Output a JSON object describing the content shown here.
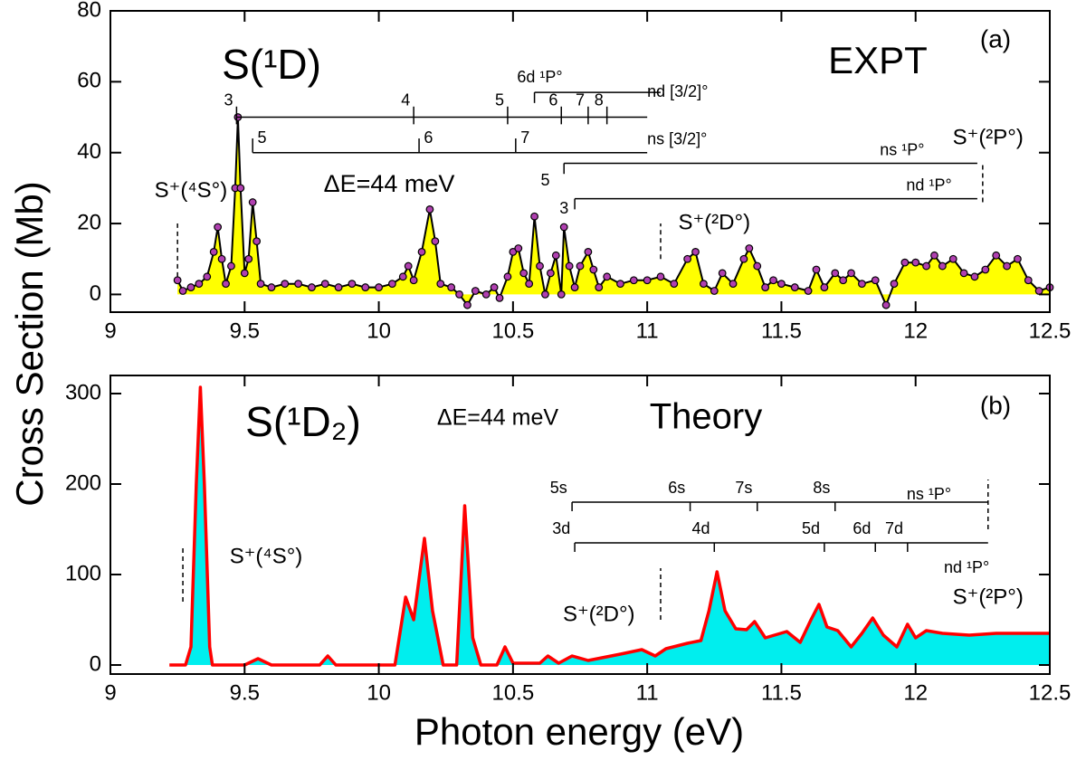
{
  "chart_data": [
    {
      "type": "area",
      "title": "S(¹D)",
      "label": "EXPT",
      "panel": "(a)",
      "resolution": "ΔE=44 meV",
      "ylabel": "Cross Section (Mb)",
      "color": "#000000",
      "fill": "#ffff00",
      "markers": true,
      "marker_color": "#b040b0",
      "x": [
        9.25,
        9.27,
        9.3,
        9.33,
        9.36,
        9.385,
        9.4,
        9.415,
        9.43,
        9.45,
        9.465,
        9.475,
        9.485,
        9.5,
        9.515,
        9.53,
        9.545,
        9.56,
        9.6,
        9.65,
        9.7,
        9.75,
        9.8,
        9.85,
        9.9,
        9.95,
        10.0,
        10.05,
        10.09,
        10.11,
        10.13,
        10.16,
        10.19,
        10.21,
        10.23,
        10.27,
        10.3,
        10.33,
        10.36,
        10.4,
        10.43,
        10.45,
        10.48,
        10.5,
        10.52,
        10.54,
        10.56,
        10.58,
        10.6,
        10.62,
        10.64,
        10.66,
        10.68,
        10.69,
        10.71,
        10.73,
        10.75,
        10.78,
        10.8,
        10.82,
        10.85,
        10.9,
        10.95,
        11.0,
        11.05,
        11.1,
        11.15,
        11.18,
        11.21,
        11.25,
        11.28,
        11.32,
        11.36,
        11.38,
        11.41,
        11.44,
        11.47,
        11.5,
        11.55,
        11.6,
        11.63,
        11.66,
        11.7,
        11.73,
        11.76,
        11.8,
        11.85,
        11.89,
        11.92,
        11.96,
        12.0,
        12.04,
        12.07,
        12.1,
        12.14,
        12.18,
        12.22,
        12.26,
        12.3,
        12.34,
        12.38,
        12.42,
        12.46,
        12.5
      ],
      "values": [
        4,
        1,
        2,
        3,
        5,
        12,
        19,
        10,
        3,
        8,
        30,
        50,
        30,
        6,
        10,
        26,
        15,
        3,
        2,
        3,
        3,
        2,
        3,
        2,
        3,
        2,
        2,
        3,
        5,
        8,
        4,
        12,
        24,
        15,
        3,
        2,
        0,
        -3,
        1,
        0,
        2,
        -1,
        5,
        12,
        13,
        6,
        3,
        22,
        8,
        0,
        6,
        11,
        0,
        19,
        8,
        2,
        8,
        12,
        7,
        2,
        5,
        3,
        4,
        4,
        5,
        3,
        10,
        12,
        3,
        1,
        6,
        3,
        10,
        13,
        8,
        2,
        4,
        3,
        2,
        1,
        7,
        2,
        6,
        4,
        6,
        3,
        4,
        -3,
        3,
        9,
        9,
        8,
        11,
        8,
        10,
        6,
        5,
        7,
        11,
        8,
        10,
        4,
        1,
        2
      ],
      "xlim": [
        9,
        12.5
      ],
      "xticks": [
        9,
        9.5,
        10,
        10.5,
        11,
        11.5,
        12,
        12.5
      ],
      "ylim": [
        -5,
        80
      ],
      "yticks": [
        0,
        20,
        40,
        60,
        80
      ],
      "rydberg_series": [
        {
          "name": "6d ¹P°",
          "levels": [
            10.58
          ],
          "end": 11.05
        },
        {
          "name": "nd [3/2]°",
          "levels": [
            9.47,
            10.13,
            10.48,
            10.68,
            10.78,
            10.85
          ],
          "level_labels": [
            "3",
            "4",
            "5",
            "6",
            "7",
            "8"
          ],
          "end": 11.0
        },
        {
          "name": "ns [3/2]°",
          "levels": [
            9.53,
            10.15,
            10.51
          ],
          "level_labels": [
            "5",
            "6",
            "7"
          ],
          "end": 11.0
        },
        {
          "name": "ns ¹P°",
          "levels": [
            10.69
          ],
          "level_labels": [
            "5"
          ],
          "end": 12.23
        },
        {
          "name": "nd ¹P°",
          "levels": [
            10.73
          ],
          "level_labels": [
            "3"
          ],
          "end": 12.23
        }
      ],
      "thresholds": [
        {
          "label": "S⁺(⁴S°)",
          "x": 9.25
        },
        {
          "label": "S⁺(²D°)",
          "x": 11.05
        },
        {
          "label": "S⁺(²P°)",
          "x": 12.25
        }
      ]
    },
    {
      "type": "area",
      "title": "S(¹D₂)",
      "label": "Theory",
      "panel": "(b)",
      "resolution": "ΔE=44 meV",
      "xlabel": "Photon energy (eV)",
      "color": "#ff0000",
      "fill": "#00eeee",
      "markers": false,
      "x": [
        9.22,
        9.28,
        9.3,
        9.32,
        9.335,
        9.35,
        9.37,
        9.38,
        9.5,
        9.55,
        9.6,
        9.78,
        9.81,
        9.84,
        10.06,
        10.1,
        10.13,
        10.17,
        10.2,
        10.24,
        10.29,
        10.32,
        10.35,
        10.38,
        10.44,
        10.47,
        10.5,
        10.6,
        10.63,
        10.67,
        10.72,
        10.78,
        10.9,
        10.98,
        11.03,
        11.07,
        11.15,
        11.2,
        11.23,
        11.26,
        11.29,
        11.33,
        11.37,
        11.4,
        11.44,
        11.52,
        11.57,
        11.61,
        11.64,
        11.67,
        11.71,
        11.76,
        11.8,
        11.84,
        11.88,
        11.93,
        11.97,
        12.0,
        12.04,
        12.1,
        12.2,
        12.3,
        12.5
      ],
      "values": [
        0,
        0,
        20,
        200,
        307,
        200,
        20,
        0,
        0,
        7,
        0,
        0,
        10,
        0,
        0,
        75,
        50,
        140,
        60,
        0,
        0,
        176,
        30,
        0,
        0,
        20,
        2,
        2,
        10,
        2,
        10,
        5,
        12,
        17,
        10,
        18,
        24,
        27,
        60,
        103,
        60,
        40,
        39,
        48,
        30,
        37,
        25,
        50,
        67,
        42,
        38,
        20,
        35,
        52,
        33,
        20,
        45,
        30,
        38,
        35,
        33,
        35,
        35
      ],
      "xlim": [
        9,
        12.5
      ],
      "xticks": [
        9,
        9.5,
        10,
        10.5,
        11,
        11.5,
        12,
        12.5
      ],
      "ylim": [
        -10,
        320
      ],
      "yticks": [
        0,
        100,
        200,
        300
      ],
      "rydberg_series": [
        {
          "name": "ns ¹P°",
          "levels": [
            10.72,
            11.16,
            11.41,
            11.7
          ],
          "level_labels": [
            "5s",
            "6s",
            "7s",
            "8s"
          ],
          "end": 12.27
        },
        {
          "name": "nd ¹P°",
          "levels": [
            10.73,
            11.25,
            11.66,
            11.85,
            11.97
          ],
          "level_labels": [
            "3d",
            "4d",
            "5d",
            "6d",
            "7d"
          ],
          "end": 12.27
        }
      ],
      "thresholds": [
        {
          "label": "S⁺(⁴S°)",
          "x": 9.27
        },
        {
          "label": "S⁺(²D°)",
          "x": 11.05
        },
        {
          "label": "S⁺(²P°)",
          "x": 12.27
        }
      ]
    }
  ]
}
